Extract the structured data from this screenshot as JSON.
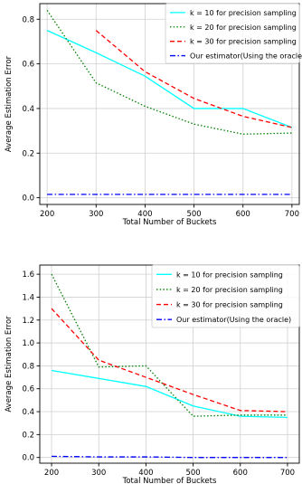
{
  "chart_data": [
    {
      "type": "line",
      "xlabel": "Total Number of Buckets",
      "ylabel": "Average Estimation Error",
      "xlim": [
        185,
        715
      ],
      "ylim": [
        -0.03,
        0.87
      ],
      "xticks": [
        200,
        300,
        400,
        500,
        600,
        700
      ],
      "yticks": [
        0.0,
        0.2,
        0.4,
        0.6,
        0.8
      ],
      "ytick_labels": [
        "0.0",
        "0.2",
        "0.4",
        "0.6",
        "0.8"
      ],
      "grid": true,
      "legend_position": "top-right",
      "series": [
        {
          "name": "k = 10 for precision sampling",
          "color": "#00ffff",
          "dash": "solid",
          "x": [
            200,
            300,
            400,
            500,
            600,
            700
          ],
          "y": [
            0.75,
            0.65,
            0.545,
            0.4,
            0.4,
            0.315
          ]
        },
        {
          "name": "k = 20 for precision sampling",
          "color": "#008000",
          "dash": "dotted",
          "x": [
            200,
            300,
            400,
            500,
            600,
            700
          ],
          "y": [
            0.84,
            0.515,
            0.41,
            0.33,
            0.285,
            0.29
          ]
        },
        {
          "name": "k = 30 for precision sampling",
          "color": "#ff0000",
          "dash": "dashed",
          "x": [
            300,
            400,
            500,
            600,
            700
          ],
          "y": [
            0.75,
            0.565,
            0.445,
            0.365,
            0.315
          ]
        },
        {
          "name": "Our estimator(Using the oracle)",
          "color": "#0000ff",
          "dash": "dashdot",
          "x": [
            200,
            300,
            400,
            500,
            600,
            700
          ],
          "y": [
            0.015,
            0.015,
            0.015,
            0.015,
            0.015,
            0.015
          ]
        }
      ]
    },
    {
      "type": "line",
      "xlabel": "Total Number of Buckets",
      "ylabel": "Average Estimation Error",
      "xlim": [
        175,
        725
      ],
      "ylim": [
        -0.05,
        1.68
      ],
      "xticks": [
        200,
        300,
        400,
        500,
        600,
        700
      ],
      "yticks": [
        0.0,
        0.2,
        0.4,
        0.6,
        0.8,
        1.0,
        1.2,
        1.4,
        1.6
      ],
      "ytick_labels": [
        "0.0",
        "0.2",
        "0.4",
        "0.6",
        "0.8",
        "1.0",
        "1.2",
        "1.4",
        "1.6"
      ],
      "grid": true,
      "legend_position": "top-right",
      "series": [
        {
          "name": "k = 10 for precision sampling",
          "color": "#00ffff",
          "dash": "solid",
          "x": [
            200,
            300,
            400,
            500,
            600,
            700
          ],
          "y": [
            0.76,
            0.69,
            0.62,
            0.45,
            0.36,
            0.35
          ]
        },
        {
          "name": "k = 20 for precision sampling",
          "color": "#008000",
          "dash": "dotted",
          "x": [
            200,
            300,
            400,
            500,
            600,
            700
          ],
          "y": [
            1.6,
            0.79,
            0.8,
            0.36,
            0.37,
            0.37
          ]
        },
        {
          "name": "k = 30 for precision sampling",
          "color": "#ff0000",
          "dash": "dashed",
          "x": [
            200,
            300,
            400,
            500,
            600,
            700
          ],
          "y": [
            1.3,
            0.85,
            0.7,
            0.55,
            0.41,
            0.4
          ]
        },
        {
          "name": "Our estimator(Using the oracle)",
          "color": "#0000ff",
          "dash": "dashdot",
          "x": [
            200,
            300,
            400,
            500,
            600,
            700
          ],
          "y": [
            0.01,
            0.005,
            0.005,
            0.0,
            0.0,
            0.0
          ]
        }
      ]
    }
  ]
}
